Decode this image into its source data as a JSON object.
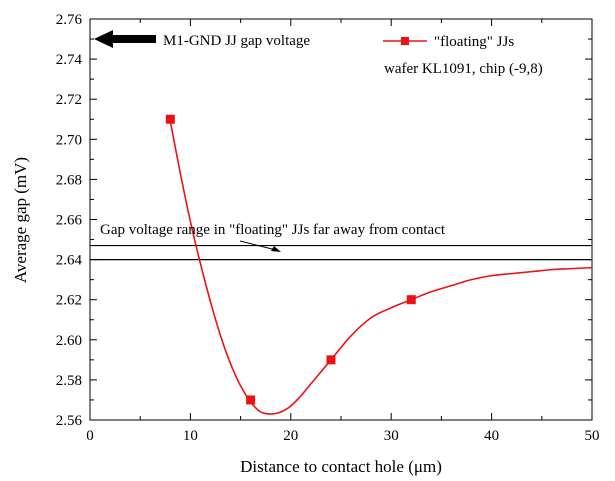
{
  "chart_data": {
    "type": "line",
    "xlabel": "Distance to contact hole (μm)",
    "ylabel": "Average gap (mV)",
    "xlim": [
      0,
      50
    ],
    "ylim": [
      2.56,
      2.76
    ],
    "x_ticks": [
      0,
      10,
      20,
      30,
      40,
      50
    ],
    "x_tick_labels": [
      "0",
      "10",
      "20",
      "30",
      "40",
      "50"
    ],
    "y_ticks": [
      2.56,
      2.58,
      2.6,
      2.62,
      2.64,
      2.66,
      2.68,
      2.7,
      2.72,
      2.74,
      2.76
    ],
    "y_tick_labels": [
      "2.56",
      "2.58",
      "2.60",
      "2.62",
      "2.64",
      "2.66",
      "2.68",
      "2.70",
      "2.72",
      "2.74",
      "2.76"
    ],
    "grid": false,
    "legend_position": "top-right",
    "colors": {
      "series": "#ee1111",
      "reference": "#000000"
    },
    "series": [
      {
        "name": "\"floating\" JJs",
        "marker": "square",
        "x": [
          8,
          16,
          24,
          32
        ],
        "y": [
          2.71,
          2.57,
          2.59,
          2.62
        ]
      }
    ],
    "fit_curve": {
      "x": [
        8,
        9,
        10,
        11,
        12,
        13,
        14,
        15,
        16,
        17,
        18,
        19,
        20,
        21,
        22,
        23,
        24,
        26,
        28,
        30,
        32,
        34,
        36,
        38,
        40,
        42,
        44,
        46,
        48,
        50
      ],
      "y": [
        2.709,
        2.683,
        2.659,
        2.638,
        2.619,
        2.602,
        2.588,
        2.577,
        2.569,
        2.564,
        2.563,
        2.564,
        2.567,
        2.572,
        2.578,
        2.584,
        2.59,
        2.602,
        2.611,
        2.616,
        2.62,
        2.624,
        2.627,
        2.63,
        2.632,
        2.633,
        2.634,
        2.635,
        2.6355,
        2.636
      ]
    },
    "reference_lines": [
      {
        "y": 2.647
      },
      {
        "y": 2.64
      }
    ],
    "annotations": {
      "range_text": "Gap voltage range in \"floating\" JJs far away from contact",
      "arrow_text": "M1-GND JJ gap voltage"
    },
    "legend_lines": [
      "\"floating\" JJs",
      "wafer KL1091, chip (-9,8)"
    ]
  }
}
